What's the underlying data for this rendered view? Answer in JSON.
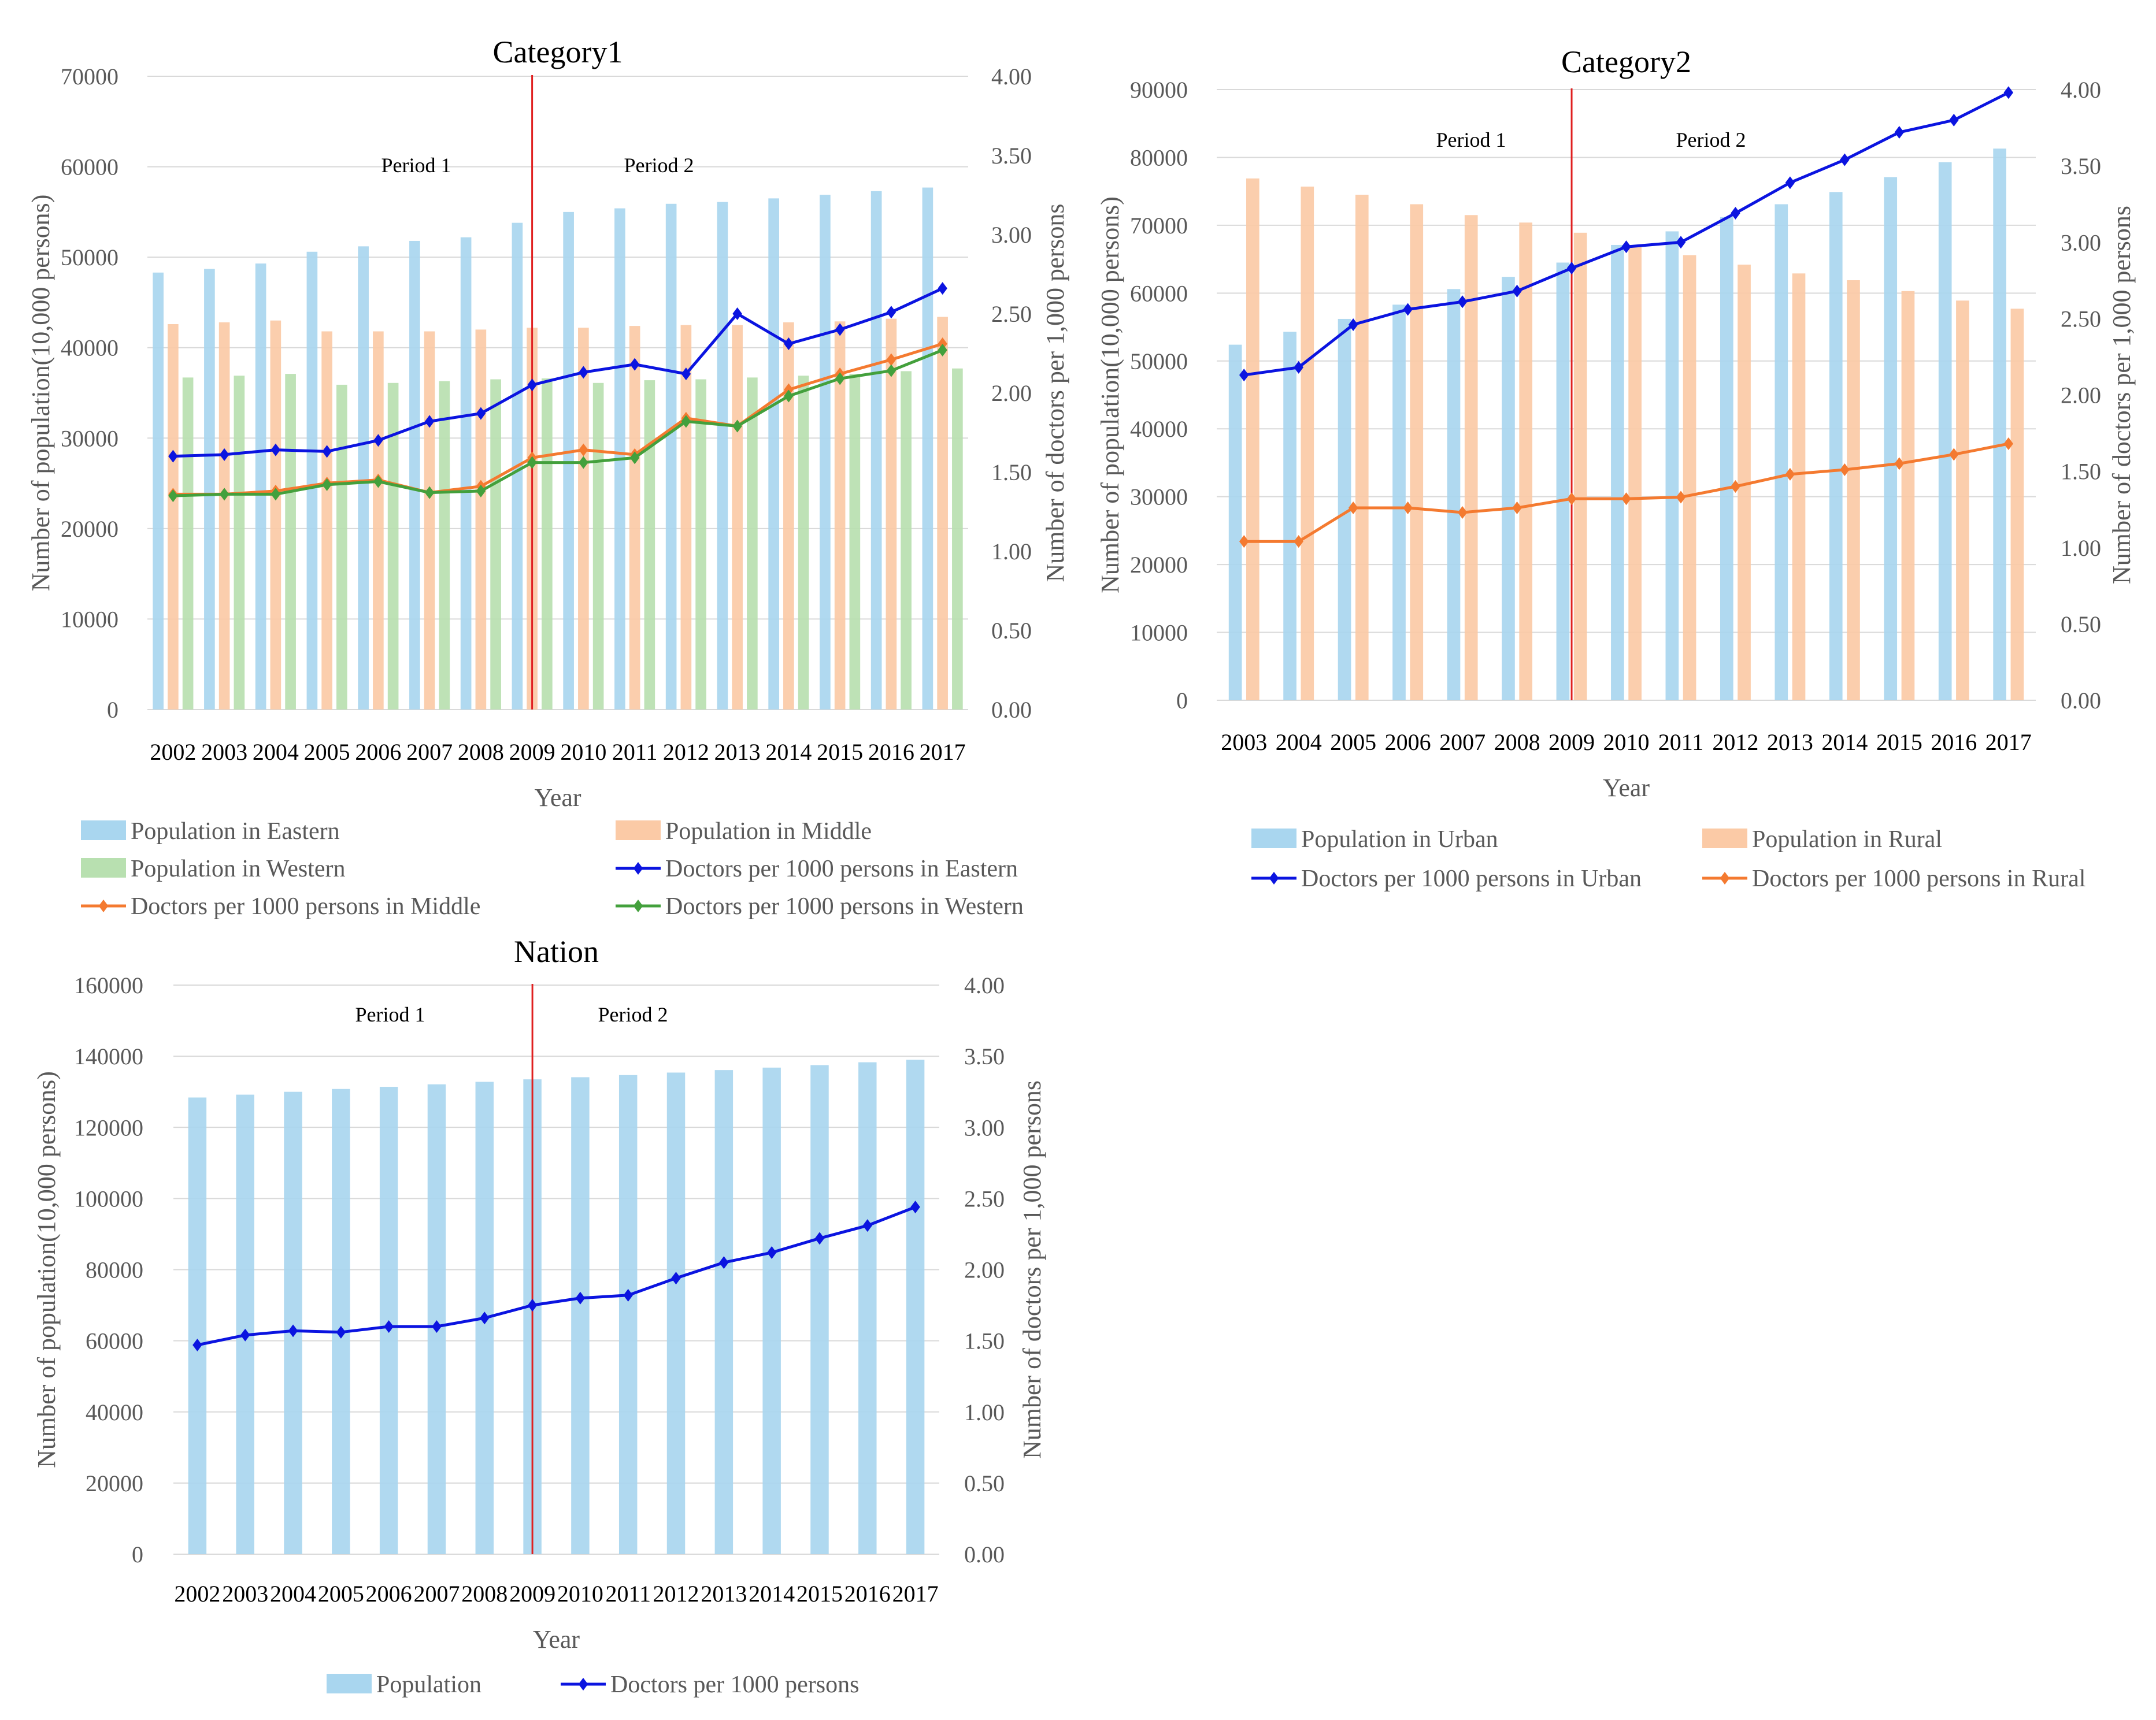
{
  "chart_data": [
    {
      "id": "c1",
      "type": "bar+line",
      "title": "Category1",
      "xlabel": "Year",
      "ylabel": "Number of  population(10,000 persons)",
      "y2label": "Number of doctors per 1,000 persons",
      "ylim": [
        0,
        70000
      ],
      "yticks": [
        "0",
        "10000",
        "20000",
        "30000",
        "40000",
        "50000",
        "60000",
        "70000"
      ],
      "y2lim": [
        0,
        4
      ],
      "y2ticks": [
        "0.00",
        "0.50",
        "1.00",
        "1.50",
        "2.00",
        "2.50",
        "3.00",
        "3.50",
        "4.00"
      ],
      "grid": true,
      "categories": [
        "2002",
        "2003",
        "2004",
        "2005",
        "2006",
        "2007",
        "2008",
        "2009",
        "2010",
        "2011",
        "2012",
        "2013",
        "2014",
        "2015",
        "2016",
        "2017"
      ],
      "divider_after": "2009",
      "periods": [
        "Period 1",
        "Period 2"
      ],
      "bar_series": [
        {
          "name": "Population in Eastern",
          "color": "#a9d6ef",
          "values": [
            48300,
            48700,
            49300,
            50600,
            51200,
            51800,
            52200,
            53800,
            55000,
            55400,
            55900,
            56100,
            56500,
            56900,
            57300,
            57700
          ]
        },
        {
          "name": "Population in Middle",
          "color": "#fbcaa6",
          "values": [
            42600,
            42800,
            43000,
            41800,
            41800,
            41800,
            42000,
            42200,
            42200,
            42400,
            42500,
            42500,
            42800,
            42900,
            43200,
            43400
          ]
        },
        {
          "name": "Population in Western",
          "color": "#b8e0b0",
          "values": [
            36700,
            36900,
            37100,
            35900,
            36100,
            36300,
            36500,
            36600,
            36100,
            36400,
            36500,
            36700,
            36900,
            37100,
            37400,
            37700
          ]
        }
      ],
      "line_series": [
        {
          "name": "Doctors per 1000 persons in Eastern",
          "color": "#0b14e0",
          "values": [
            1.6,
            1.61,
            1.64,
            1.63,
            1.7,
            1.82,
            1.87,
            2.05,
            2.13,
            2.18,
            2.12,
            2.5,
            2.31,
            2.4,
            2.51,
            2.66
          ]
        },
        {
          "name": "Doctors per 1000 persons in Middle",
          "color": "#f47a30",
          "values": [
            1.36,
            1.36,
            1.38,
            1.43,
            1.45,
            1.37,
            1.41,
            1.59,
            1.64,
            1.61,
            1.84,
            1.79,
            2.02,
            2.12,
            2.21,
            2.31
          ]
        },
        {
          "name": "Doctors per 1000 persons in Western",
          "color": "#43a03c",
          "values": [
            1.35,
            1.36,
            1.36,
            1.42,
            1.44,
            1.37,
            1.38,
            1.56,
            1.56,
            1.59,
            1.82,
            1.79,
            1.98,
            2.09,
            2.14,
            2.27
          ]
        }
      ]
    },
    {
      "id": "c2",
      "type": "bar+line",
      "title": "Category2",
      "xlabel": "Year",
      "ylabel": "Number of  population(10,000 persons)",
      "y2label": "Number of doctors per 1,000 persons",
      "ylim": [
        0,
        90000
      ],
      "yticks": [
        "0",
        "10000",
        "20000",
        "30000",
        "40000",
        "50000",
        "60000",
        "70000",
        "80000",
        "90000"
      ],
      "y2lim": [
        0,
        4
      ],
      "y2ticks": [
        "0.00",
        "0.50",
        "1.00",
        "1.50",
        "2.00",
        "2.50",
        "3.00",
        "3.50",
        "4.00"
      ],
      "grid": true,
      "categories": [
        "2003",
        "2004",
        "2005",
        "2006",
        "2007",
        "2008",
        "2009",
        "2010",
        "2011",
        "2012",
        "2013",
        "2014",
        "2015",
        "2016",
        "2017"
      ],
      "divider_after": "2009",
      "periods": [
        "Period 1",
        "Period 2"
      ],
      "bar_series": [
        {
          "name": "Population in Urban",
          "color": "#a9d6ef",
          "values": [
            52400,
            54300,
            56200,
            58300,
            60600,
            62400,
            64500,
            67100,
            69100,
            71200,
            73100,
            74900,
            77100,
            79300,
            81300
          ]
        },
        {
          "name": "Population in Rural",
          "color": "#fbcaa6",
          "values": [
            76900,
            75700,
            74500,
            73100,
            71500,
            70400,
            68900,
            67100,
            65600,
            64200,
            62900,
            61900,
            60300,
            58900,
            57700
          ]
        }
      ],
      "line_series": [
        {
          "name": "Doctors per 1000 persons in Urban",
          "color": "#0b14e0",
          "values": [
            2.13,
            2.18,
            2.46,
            2.56,
            2.61,
            2.68,
            2.83,
            2.97,
            3.0,
            3.19,
            3.39,
            3.54,
            3.72,
            3.8,
            3.98
          ]
        },
        {
          "name": "Doctors per 1000 persons in Rural",
          "color": "#f47a30",
          "values": [
            1.04,
            1.04,
            1.26,
            1.26,
            1.23,
            1.26,
            1.32,
            1.32,
            1.33,
            1.4,
            1.48,
            1.51,
            1.55,
            1.61,
            1.68
          ]
        }
      ]
    },
    {
      "id": "c3",
      "type": "bar+line",
      "title": "Nation",
      "xlabel": "Year",
      "ylabel": "Number of  population(10,000 persons)",
      "y2label": "Number of doctors per 1,000 persons",
      "ylim": [
        0,
        160000
      ],
      "yticks": [
        "0",
        "20000",
        "40000",
        "60000",
        "80000",
        "100000",
        "120000",
        "140000",
        "160000"
      ],
      "y2lim": [
        0,
        4
      ],
      "y2ticks": [
        "0.00",
        "0.50",
        "1.00",
        "1.50",
        "2.00",
        "2.50",
        "3.00",
        "3.50",
        "4.00"
      ],
      "grid": true,
      "categories": [
        "2002",
        "2003",
        "2004",
        "2005",
        "2006",
        "2007",
        "2008",
        "2009",
        "2010",
        "2011",
        "2012",
        "2013",
        "2014",
        "2015",
        "2016",
        "2017"
      ],
      "divider_after": "2009",
      "periods": [
        "Period 1",
        "Period 2"
      ],
      "bar_series": [
        {
          "name": "Population",
          "color": "#a9d6ef",
          "values": [
            128400,
            129200,
            130000,
            130800,
            131400,
            132100,
            132800,
            133500,
            134100,
            134700,
            135400,
            136100,
            136800,
            137500,
            138300,
            139000
          ]
        }
      ],
      "line_series": [
        {
          "name": "Doctors per 1000 persons",
          "color": "#0b14e0",
          "values": [
            1.47,
            1.54,
            1.57,
            1.56,
            1.6,
            1.6,
            1.66,
            1.75,
            1.8,
            1.82,
            1.94,
            2.05,
            2.12,
            2.22,
            2.31,
            2.44
          ]
        }
      ]
    }
  ]
}
